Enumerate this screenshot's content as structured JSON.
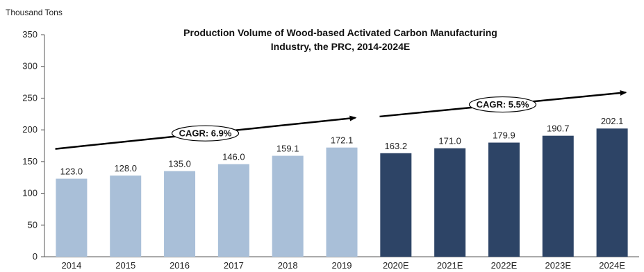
{
  "chart_data": {
    "type": "bar",
    "title_line1": "Production Volume of Wood-based Activated Carbon Manufacturing",
    "title_line2": "Industry, the PRC, 2014-2024E",
    "ylabel": "Thousand Tons",
    "ylim": [
      0,
      350
    ],
    "yticks": [
      0,
      50,
      100,
      150,
      200,
      250,
      300,
      350
    ],
    "categories": [
      "2014",
      "2015",
      "2016",
      "2017",
      "2018",
      "2019",
      "2020E",
      "2021E",
      "2022E",
      "2023E",
      "2024E"
    ],
    "values": [
      123.0,
      128.0,
      135.0,
      146.0,
      159.1,
      172.1,
      163.2,
      171.0,
      179.9,
      190.7,
      202.1
    ],
    "value_labels": [
      "123.0",
      "128.0",
      "135.0",
      "146.0",
      "159.1",
      "172.1",
      "163.2",
      "171.0",
      "179.9",
      "190.7",
      "202.1"
    ],
    "colors": {
      "historical": "#a9bfd8",
      "forecast": "#2d4466"
    },
    "forecast_start_index": 6,
    "grid": false,
    "annotations": [
      {
        "label": "CAGR: 6.9%",
        "from_category": "2014",
        "to_category": "2019",
        "y_from": 170,
        "y_to": 219
      },
      {
        "label": "CAGR: 5.5%",
        "from_category": "2020E",
        "to_category": "2024E",
        "y_from": 221,
        "y_to": 259
      }
    ]
  }
}
